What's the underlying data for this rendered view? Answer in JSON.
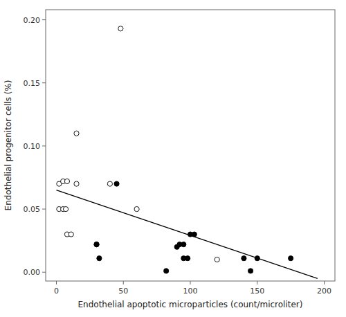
{
  "chart_data": {
    "type": "scatter",
    "xlabel": "Endothelial apoptotic microparticles (count/microliter)",
    "ylabel": "Endothelial progenitor cells (%)",
    "grid": false,
    "series": [
      {
        "type": "scatter",
        "marker": "open-circle",
        "color": "#000000",
        "x": [
          2,
          5,
          8,
          15,
          40,
          2,
          5,
          7,
          8,
          11,
          15,
          48,
          60,
          120
        ],
        "values": [
          0.07,
          0.072,
          0.072,
          0.07,
          0.07,
          0.05,
          0.05,
          0.05,
          0.03,
          0.03,
          0.11,
          0.193,
          0.05,
          0.01
        ]
      },
      {
        "type": "scatter",
        "marker": "circle",
        "color": "#000000",
        "x": [
          30,
          30,
          32,
          45,
          82,
          90,
          92,
          95,
          95,
          98,
          100,
          103,
          140,
          145,
          150,
          175
        ],
        "values": [
          0.022,
          0.022,
          0.011,
          0.07,
          0.001,
          0.02,
          0.022,
          0.022,
          0.011,
          0.011,
          0.03,
          0.03,
          0.011,
          0.001,
          0.011,
          0.011
        ]
      },
      {
        "type": "line",
        "color": "#000000",
        "x": [
          0,
          195
        ],
        "values": [
          0.065,
          -0.005
        ]
      }
    ],
    "xlim": [
      -8,
      208
    ],
    "ylim": [
      -0.007,
      0.208
    ],
    "xticks": [
      0,
      50,
      100,
      150,
      200
    ],
    "yticks": [
      {
        "value": 0.0,
        "label": "0.00"
      },
      {
        "value": 0.05,
        "label": "0.05"
      },
      {
        "value": 0.1,
        "label": "0.10"
      },
      {
        "value": 0.15,
        "label": "0.15"
      },
      {
        "value": 0.2,
        "label": "0.20"
      }
    ]
  }
}
